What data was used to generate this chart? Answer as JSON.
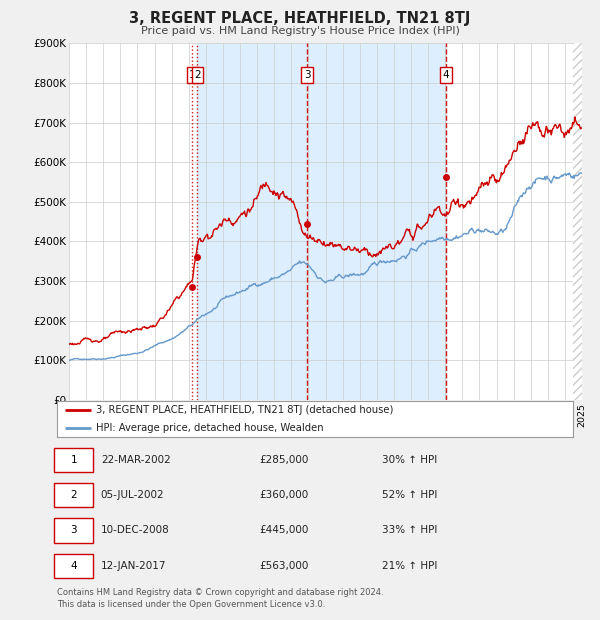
{
  "title": "3, REGENT PLACE, HEATHFIELD, TN21 8TJ",
  "subtitle": "Price paid vs. HM Land Registry's House Price Index (HPI)",
  "hpi_label": "HPI: Average price, detached house, Wealden",
  "property_label": "3, REGENT PLACE, HEATHFIELD, TN21 8TJ (detached house)",
  "property_color": "#cc0000",
  "hpi_color": "#6699cc",
  "background_color": "#f0f0f0",
  "plot_bg_color": "#ffffff",
  "shade_color": "#ddeeff",
  "ylim": [
    0,
    900000
  ],
  "yticks": [
    0,
    100000,
    200000,
    300000,
    400000,
    500000,
    600000,
    700000,
    800000,
    900000
  ],
  "ytick_labels": [
    "£0",
    "£100K",
    "£200K",
    "£300K",
    "£400K",
    "£500K",
    "£600K",
    "£700K",
    "£800K",
    "£900K"
  ],
  "xmin": 1995.0,
  "xmax": 2025.0,
  "transactions": [
    {
      "num": 1,
      "date": "22-MAR-2002",
      "year": 2002.22,
      "price": 285000,
      "pct": "30%",
      "label": "1"
    },
    {
      "num": 2,
      "date": "05-JUL-2002",
      "year": 2002.51,
      "price": 360000,
      "pct": "52%",
      "label": "2"
    },
    {
      "num": 3,
      "date": "10-DEC-2008",
      "year": 2008.94,
      "price": 445000,
      "pct": "33%",
      "label": "3"
    },
    {
      "num": 4,
      "date": "12-JAN-2017",
      "year": 2017.04,
      "price": 563000,
      "pct": "21%",
      "label": "4"
    }
  ],
  "footer": "Contains HM Land Registry data © Crown copyright and database right 2024.\nThis data is licensed under the Open Government Licence v3.0."
}
